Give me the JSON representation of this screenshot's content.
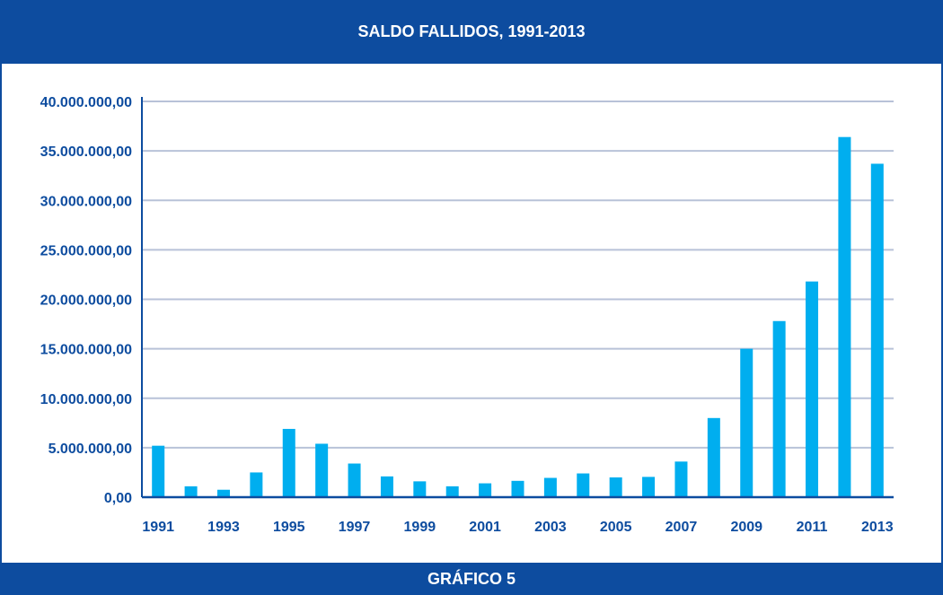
{
  "header": {
    "title": "SALDO FALLIDOS, 1991-2013"
  },
  "footer": {
    "label": "GRÁFICO 5"
  },
  "colors": {
    "brand": "#0d4c9f",
    "bar": "#00aeef",
    "grid": "#b8c2d8"
  },
  "chart_data": {
    "type": "bar",
    "title": "SALDO FALLIDOS, 1991-2013",
    "xlabel": "",
    "ylabel": "",
    "categories": [
      "1991",
      "1992",
      "1993",
      "1994",
      "1995",
      "1996",
      "1997",
      "1998",
      "1999",
      "2000",
      "2001",
      "2002",
      "2003",
      "2004",
      "2005",
      "2006",
      "2007",
      "2008",
      "2009",
      "2010",
      "2011",
      "2012",
      "2013"
    ],
    "x_tick_labels": [
      "1991",
      "1993",
      "1995",
      "1997",
      "1999",
      "2001",
      "2003",
      "2005",
      "2007",
      "2009",
      "2011",
      "2013"
    ],
    "values": [
      5200000,
      1100000,
      750000,
      2500000,
      6900000,
      5400000,
      3400000,
      2100000,
      1600000,
      1100000,
      1400000,
      1650000,
      1950000,
      2400000,
      2000000,
      2050000,
      3600000,
      8000000,
      15000000,
      17800000,
      21800000,
      36400000,
      33700000
    ],
    "ylim": [
      0,
      40000000
    ],
    "y_ticks": [
      0,
      5000000,
      10000000,
      15000000,
      20000000,
      25000000,
      30000000,
      35000000,
      40000000
    ],
    "y_tick_labels": [
      "0,00",
      "5.000.000,00",
      "10.000.000,00",
      "15.000.000,00",
      "20.000.000,00",
      "25.000.000,00",
      "30.000.000,00",
      "35.000.000,00",
      "40.000.000,00"
    ],
    "grid": true
  }
}
